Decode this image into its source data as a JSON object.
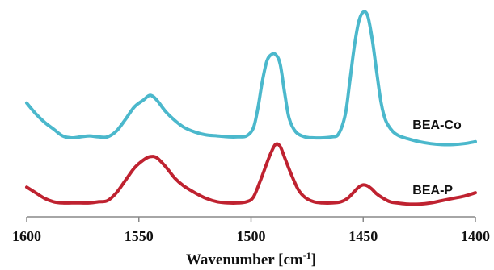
{
  "chart_data": {
    "type": "line",
    "title": "",
    "xlabel": "Wavenumber [cm",
    "xlabel_sup": "-1",
    "xlabel_end": "]",
    "ylabel": "",
    "xlim": [
      1600,
      1400
    ],
    "x_reversed": true,
    "grid": false,
    "xticks": [
      1600,
      1550,
      1500,
      1450,
      1400
    ],
    "series": [
      {
        "name": "BEA-Co",
        "color": "#4bb8cc",
        "x": [
          1600,
          1596,
          1592,
          1588,
          1584,
          1580,
          1576,
          1572,
          1568,
          1564,
          1560,
          1556,
          1552,
          1548,
          1545,
          1542,
          1538,
          1534,
          1530,
          1525,
          1520,
          1515,
          1510,
          1506,
          1502,
          1499,
          1497,
          1495,
          1493,
          1491,
          1489,
          1487,
          1485,
          1483,
          1480,
          1476,
          1472,
          1468,
          1464,
          1461,
          1458,
          1456,
          1454,
          1452,
          1450,
          1448,
          1446,
          1444,
          1442,
          1440,
          1437,
          1434,
          1430,
          1425,
          1420,
          1415,
          1410,
          1405,
          1400
        ],
        "y": [
          0.56,
          0.45,
          0.36,
          0.29,
          0.22,
          0.2,
          0.21,
          0.22,
          0.21,
          0.21,
          0.27,
          0.39,
          0.52,
          0.59,
          0.64,
          0.59,
          0.47,
          0.38,
          0.31,
          0.26,
          0.23,
          0.22,
          0.21,
          0.21,
          0.22,
          0.3,
          0.5,
          0.78,
          0.99,
          1.06,
          1.06,
          0.96,
          0.66,
          0.4,
          0.26,
          0.21,
          0.2,
          0.2,
          0.21,
          0.24,
          0.44,
          0.78,
          1.14,
          1.4,
          1.5,
          1.46,
          1.22,
          0.88,
          0.56,
          0.38,
          0.27,
          0.22,
          0.19,
          0.16,
          0.14,
          0.13,
          0.13,
          0.14,
          0.16
        ]
      },
      {
        "name": "BEA-P",
        "color": "#bf2230",
        "x": [
          1600,
          1596,
          1592,
          1588,
          1584,
          1580,
          1576,
          1572,
          1568,
          1564,
          1560,
          1556,
          1552,
          1548,
          1545,
          1542,
          1538,
          1534,
          1530,
          1525,
          1520,
          1515,
          1510,
          1506,
          1502,
          1499,
          1496,
          1493,
          1491,
          1489,
          1487,
          1485,
          1482,
          1479,
          1476,
          1472,
          1468,
          1464,
          1460,
          1457,
          1454,
          1452,
          1450,
          1448,
          1446,
          1444,
          1441,
          1438,
          1435,
          1430,
          1425,
          1420,
          1415,
          1410,
          1405,
          1400
        ],
        "y": [
          0.17,
          0.12,
          0.07,
          0.04,
          0.03,
          0.03,
          0.03,
          0.03,
          0.04,
          0.05,
          0.12,
          0.23,
          0.34,
          0.41,
          0.44,
          0.43,
          0.35,
          0.25,
          0.18,
          0.12,
          0.07,
          0.04,
          0.03,
          0.03,
          0.04,
          0.08,
          0.22,
          0.38,
          0.48,
          0.55,
          0.53,
          0.43,
          0.28,
          0.15,
          0.08,
          0.04,
          0.03,
          0.03,
          0.04,
          0.07,
          0.13,
          0.17,
          0.19,
          0.18,
          0.15,
          0.11,
          0.07,
          0.04,
          0.03,
          0.02,
          0.02,
          0.03,
          0.05,
          0.07,
          0.09,
          0.12
        ]
      }
    ],
    "annotations": [
      {
        "text": "BEA-Co",
        "x": 1428,
        "y": 0.34
      },
      {
        "text": "BEA-P",
        "x": 1428,
        "y": 0.15
      }
    ]
  }
}
